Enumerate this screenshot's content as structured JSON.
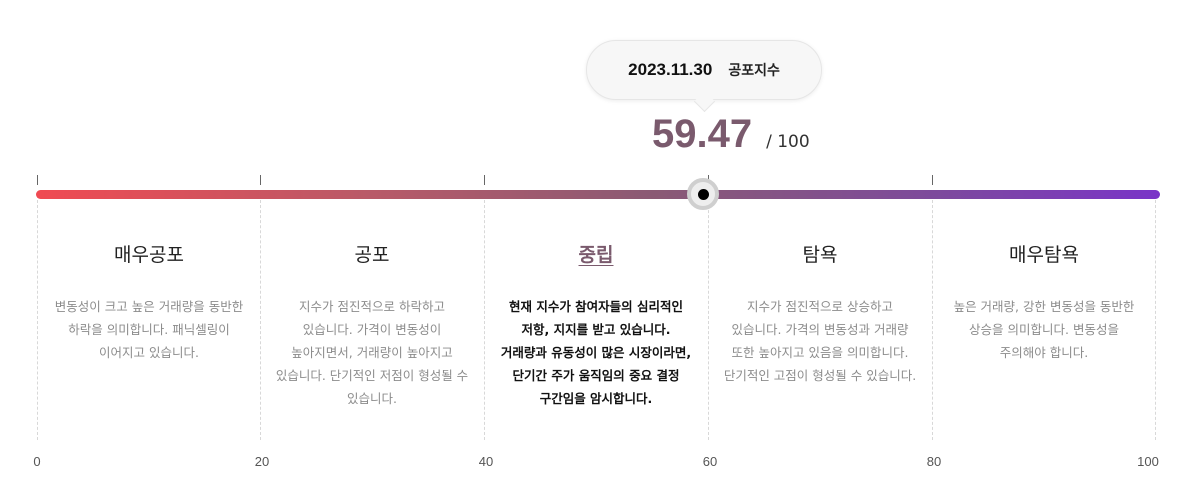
{
  "tooltip": {
    "date": "2023.11.30",
    "label": "공포지수"
  },
  "score": {
    "value": "59.47",
    "max": "/ 100",
    "numeric": 59.47,
    "accent_color": "#7a5a6d"
  },
  "scale": {
    "gradient_start": "#f04a52",
    "gradient_end": "#7a34c8",
    "labels": [
      "0",
      "20",
      "40",
      "60",
      "80",
      "100"
    ]
  },
  "zones": [
    {
      "title": "매우공포",
      "description": "변동성이 크고 높은 거래량을 동반한 하락을 의미합니다. 패닉셀링이 이어지고 있습니다.",
      "active": false
    },
    {
      "title": "공포",
      "description": "지수가 점진적으로 하락하고 있습니다. 가격이 변동성이 높아지면서, 거래량이 높아지고 있습니다. 단기적인 저점이 형성될 수 있습니다.",
      "active": false
    },
    {
      "title": "중립",
      "description": "현재 지수가 참여자들의 심리적인 저항, 지지를 받고 있습니다. 거래량과 유동성이 많은 시장이라면, 단기간 주가 움직임의 중요 결정 구간임을 암시합니다.",
      "active": true
    },
    {
      "title": "탐욕",
      "description": "지수가 점진적으로 상승하고 있습니다. 가격의 변동성과 거래량 또한 높아지고 있음을 의미합니다. 단기적인 고점이 형성될 수 있습니다.",
      "active": false
    },
    {
      "title": "매우탐욕",
      "description": "높은 거래량, 강한 변동성을 동반한 상승을 의미합니다. 변동성을 주의해야 합니다.",
      "active": false
    }
  ]
}
